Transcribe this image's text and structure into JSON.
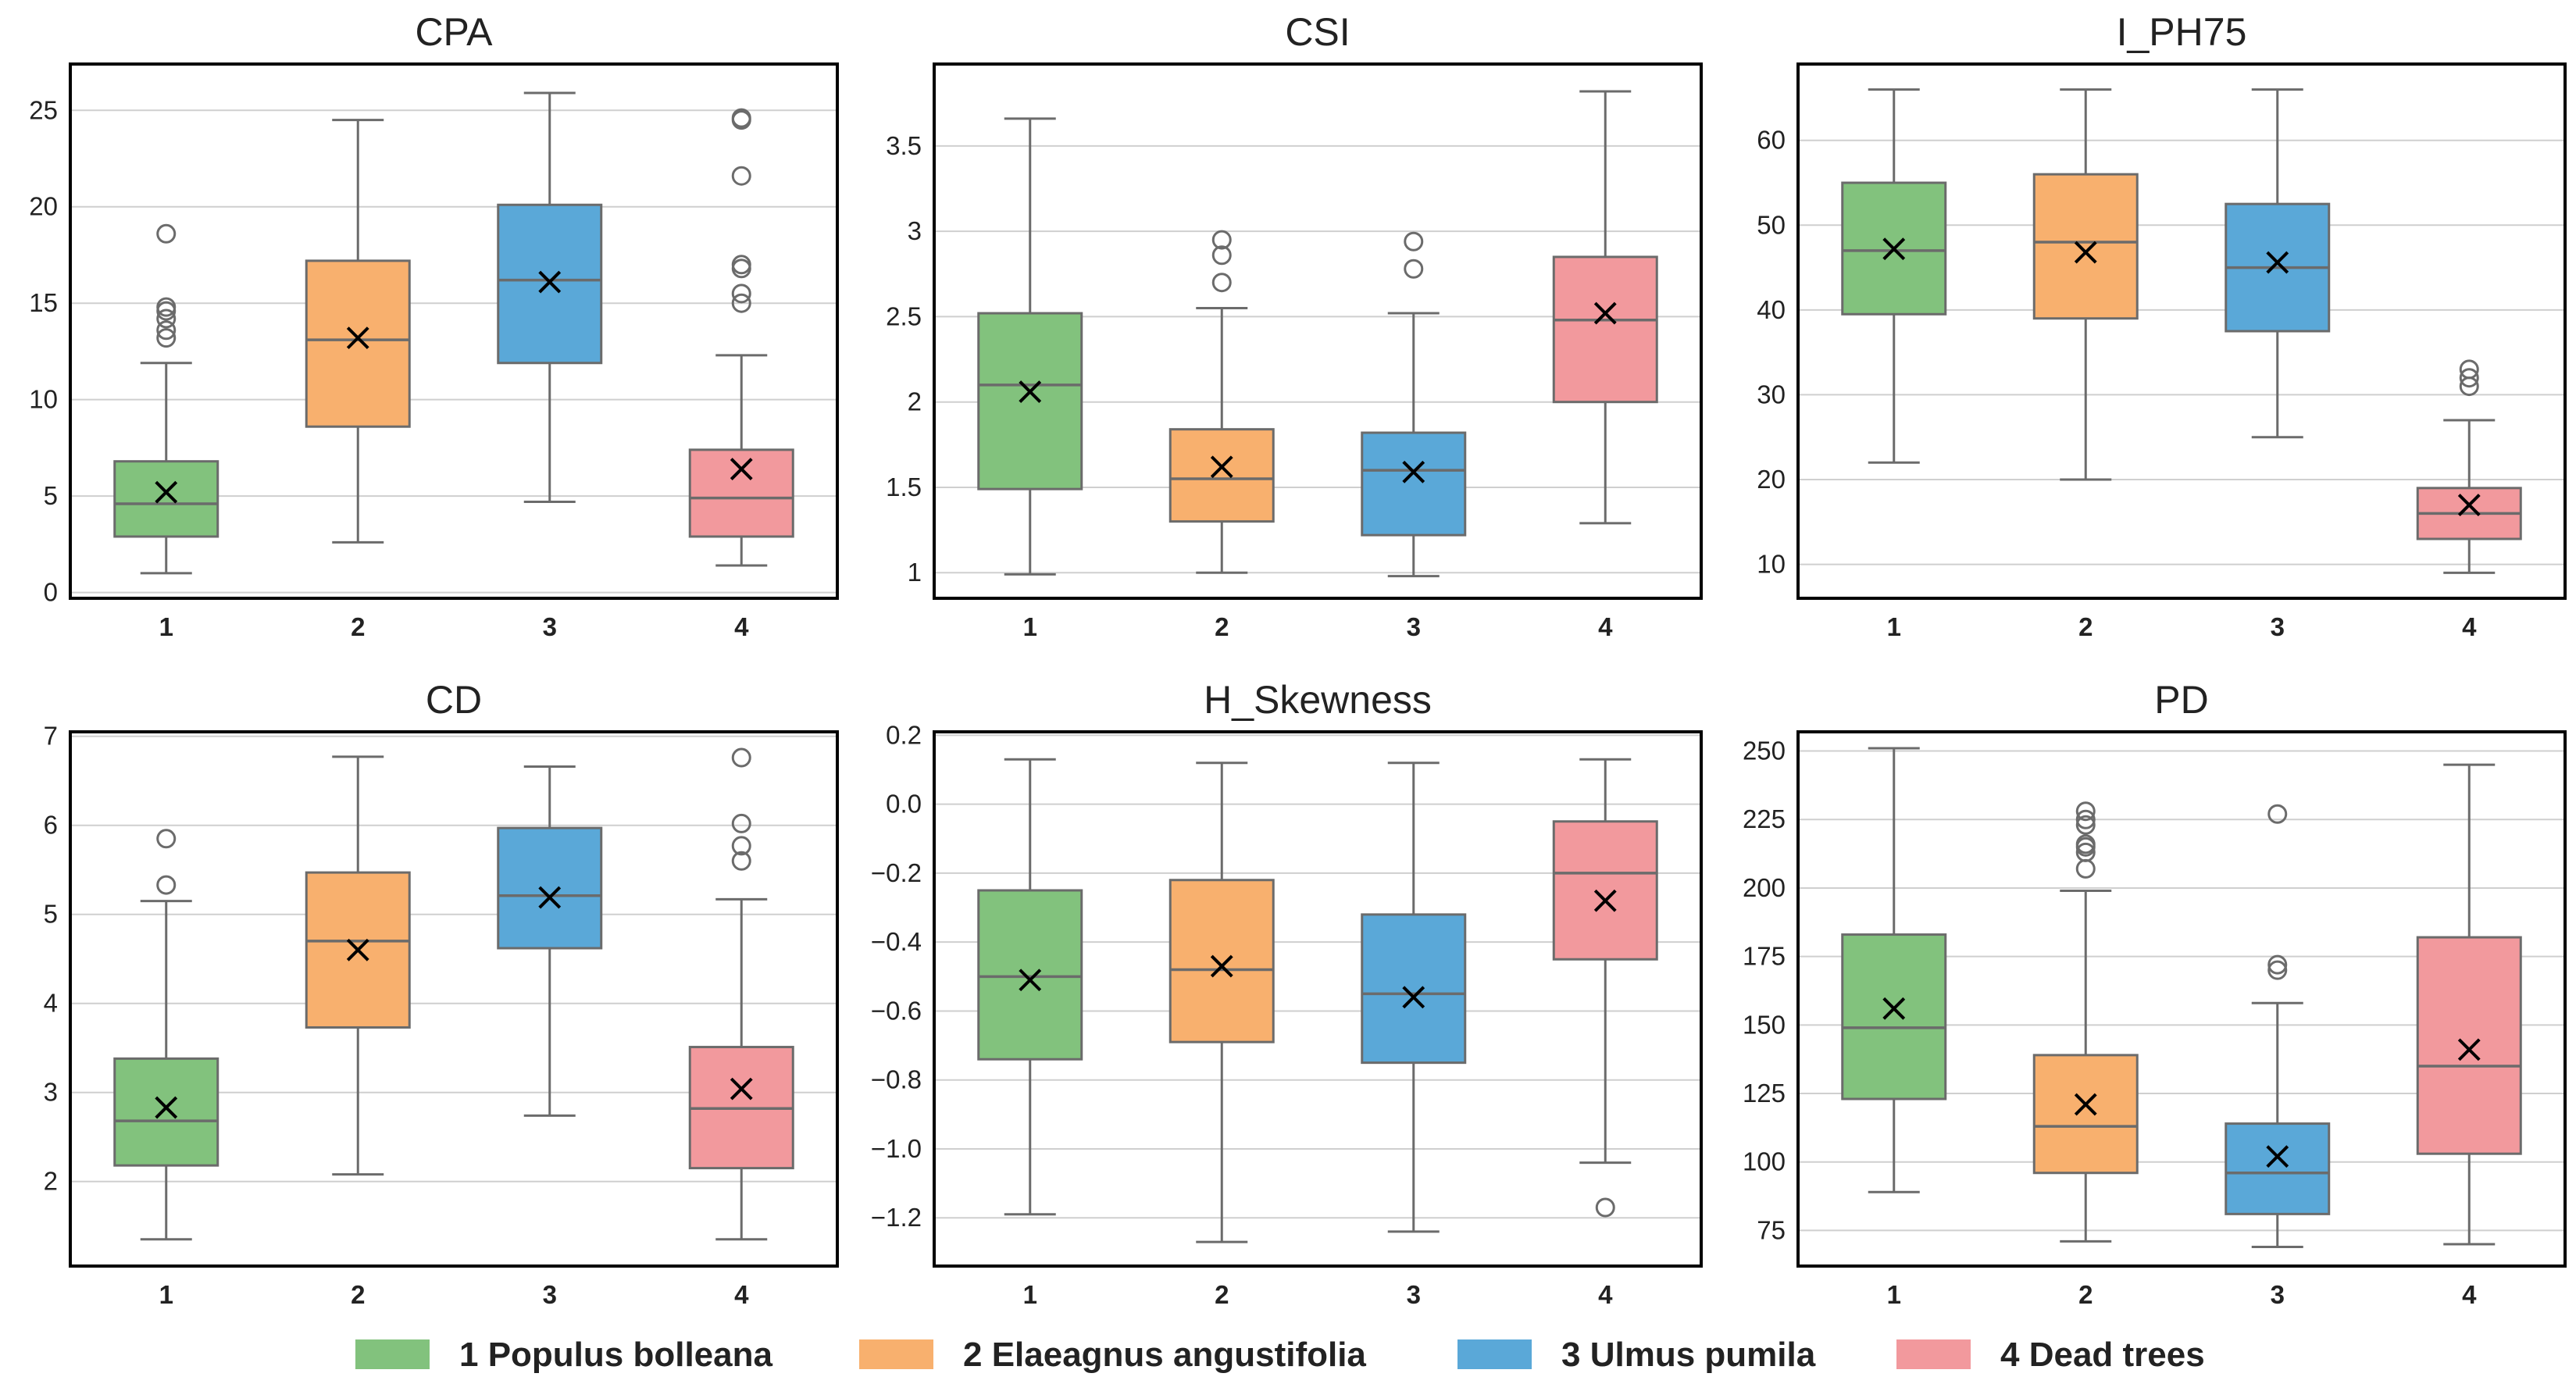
{
  "chart_data": [
    {
      "type": "box",
      "title": "CPA",
      "categories": [
        "1",
        "2",
        "3",
        "4"
      ],
      "ylim": [
        -0.3,
        27.4
      ],
      "yticks": [
        0,
        5,
        10,
        15,
        20,
        25
      ],
      "boxes": [
        {
          "whislo": 1.0,
          "q1": 2.9,
          "med": 4.6,
          "q3": 6.8,
          "whishi": 11.9,
          "mean": 5.2,
          "fliers": [
            13.2,
            13.6,
            14.2,
            14.6,
            14.8,
            18.6
          ]
        },
        {
          "whislo": 2.6,
          "q1": 8.6,
          "med": 13.1,
          "q3": 17.2,
          "whishi": 24.5,
          "mean": 13.2,
          "fliers": []
        },
        {
          "whislo": 4.7,
          "q1": 11.9,
          "med": 16.2,
          "q3": 20.1,
          "whishi": 25.9,
          "mean": 16.1,
          "fliers": []
        },
        {
          "whislo": 1.4,
          "q1": 2.9,
          "med": 4.9,
          "q3": 7.4,
          "whishi": 12.3,
          "mean": 6.4,
          "fliers": [
            15.0,
            15.5,
            16.8,
            17.0,
            21.6,
            24.5,
            24.6
          ]
        }
      ]
    },
    {
      "type": "box",
      "title": "CSI",
      "categories": [
        "1",
        "2",
        "3",
        "4"
      ],
      "ylim": [
        0.85,
        3.98
      ],
      "yticks": [
        1.0,
        1.5,
        2.0,
        2.5,
        3.0,
        3.5
      ],
      "boxes": [
        {
          "whislo": 0.99,
          "q1": 1.49,
          "med": 2.1,
          "q3": 2.52,
          "whishi": 3.66,
          "mean": 2.06,
          "fliers": []
        },
        {
          "whislo": 1.0,
          "q1": 1.3,
          "med": 1.55,
          "q3": 1.84,
          "whishi": 2.55,
          "mean": 1.62,
          "fliers": [
            2.7,
            2.86,
            2.95
          ]
        },
        {
          "whislo": 0.98,
          "q1": 1.22,
          "med": 1.6,
          "q3": 1.82,
          "whishi": 2.52,
          "mean": 1.59,
          "fliers": [
            2.78,
            2.94
          ]
        },
        {
          "whislo": 1.29,
          "q1": 2.0,
          "med": 2.48,
          "q3": 2.85,
          "whishi": 3.82,
          "mean": 2.52,
          "fliers": []
        }
      ]
    },
    {
      "type": "box",
      "title": "I_PH75",
      "categories": [
        "1",
        "2",
        "3",
        "4"
      ],
      "ylim": [
        6.0,
        69.0
      ],
      "yticks": [
        10,
        20,
        30,
        40,
        50,
        60
      ],
      "boxes": [
        {
          "whislo": 22,
          "q1": 39.5,
          "med": 47,
          "q3": 55,
          "whishi": 66,
          "mean": 47.2,
          "fliers": []
        },
        {
          "whislo": 20,
          "q1": 39,
          "med": 48,
          "q3": 56,
          "whishi": 66,
          "mean": 46.8,
          "fliers": []
        },
        {
          "whislo": 25,
          "q1": 37.5,
          "med": 45,
          "q3": 52.5,
          "whishi": 66,
          "mean": 45.6,
          "fliers": []
        },
        {
          "whislo": 9,
          "q1": 13,
          "med": 16,
          "q3": 19,
          "whishi": 27,
          "mean": 17.0,
          "fliers": [
            31,
            32,
            33
          ]
        }
      ]
    },
    {
      "type": "box",
      "title": "CD",
      "categories": [
        "1",
        "2",
        "3",
        "4"
      ],
      "ylim": [
        1.05,
        7.05
      ],
      "yticks": [
        2,
        3,
        4,
        5,
        6,
        7
      ],
      "boxes": [
        {
          "whislo": 1.35,
          "q1": 2.18,
          "med": 2.68,
          "q3": 3.38,
          "whishi": 5.15,
          "mean": 2.83,
          "fliers": [
            5.33,
            5.85
          ]
        },
        {
          "whislo": 2.08,
          "q1": 3.73,
          "med": 4.7,
          "q3": 5.47,
          "whishi": 6.77,
          "mean": 4.6,
          "fliers": []
        },
        {
          "whislo": 2.74,
          "q1": 4.62,
          "med": 5.21,
          "q3": 5.97,
          "whishi": 6.66,
          "mean": 5.19,
          "fliers": []
        },
        {
          "whislo": 1.35,
          "q1": 2.15,
          "med": 2.82,
          "q3": 3.51,
          "whishi": 5.17,
          "mean": 3.04,
          "fliers": [
            5.6,
            5.77,
            6.02,
            6.76
          ]
        }
      ]
    },
    {
      "type": "box",
      "title": "H_Skewness",
      "categories": [
        "1",
        "2",
        "3",
        "4"
      ],
      "ylim": [
        -1.34,
        0.21
      ],
      "yticks": [
        -1.2,
        -1.0,
        -0.8,
        -0.6,
        -0.4,
        -0.2,
        0.0,
        0.2
      ],
      "ytick_labels": [
        "−1.2",
        "−1.0",
        "−0.8",
        "−0.6",
        "−0.4",
        "−0.2",
        "0.0",
        "0.2"
      ],
      "boxes": [
        {
          "whislo": -1.19,
          "q1": -0.74,
          "med": -0.5,
          "q3": -0.25,
          "whishi": 0.13,
          "mean": -0.51,
          "fliers": []
        },
        {
          "whislo": -1.27,
          "q1": -0.69,
          "med": -0.48,
          "q3": -0.22,
          "whishi": 0.12,
          "mean": -0.47,
          "fliers": []
        },
        {
          "whislo": -1.24,
          "q1": -0.75,
          "med": -0.55,
          "q3": -0.32,
          "whishi": 0.12,
          "mean": -0.56,
          "fliers": []
        },
        {
          "whislo": -1.04,
          "q1": -0.45,
          "med": -0.2,
          "q3": -0.05,
          "whishi": 0.13,
          "mean": -0.28,
          "fliers": [
            -1.17
          ]
        }
      ]
    },
    {
      "type": "box",
      "title": "PD",
      "categories": [
        "1",
        "2",
        "3",
        "4"
      ],
      "ylim": [
        62,
        257
      ],
      "yticks": [
        75,
        100,
        125,
        150,
        175,
        200,
        225,
        250
      ],
      "boxes": [
        {
          "whislo": 89,
          "q1": 123,
          "med": 149,
          "q3": 183,
          "whishi": 251,
          "mean": 156,
          "fliers": []
        },
        {
          "whislo": 71,
          "q1": 96,
          "med": 113,
          "q3": 139,
          "whishi": 199,
          "mean": 121,
          "fliers": [
            207,
            213,
            215,
            216,
            223,
            225,
            228
          ]
        },
        {
          "whislo": 69,
          "q1": 81,
          "med": 96,
          "q3": 114,
          "whishi": 158,
          "mean": 102,
          "fliers": [
            170,
            172,
            227
          ]
        },
        {
          "whislo": 70,
          "q1": 103,
          "med": 135,
          "q3": 182,
          "whishi": 245,
          "mean": 141,
          "fliers": []
        }
      ]
    }
  ],
  "legend": {
    "position": "bottom-center",
    "items": [
      {
        "label": "1 Populus bolleana",
        "color": "#82c27d"
      },
      {
        "label": "2 Elaeagnus angustifolia",
        "color": "#f8b06e"
      },
      {
        "label": "3 Ulmus pumila",
        "color": "#5aa8d8"
      },
      {
        "label": "4 Dead trees",
        "color": "#f2999d"
      }
    ]
  },
  "colors": {
    "box_edge": "#6b6b6b",
    "frame": "#000000",
    "grid": "#cfcfcf",
    "mean_marker": "#000000"
  }
}
